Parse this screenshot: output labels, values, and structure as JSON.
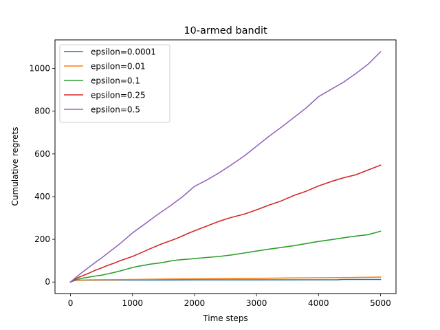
{
  "chart_data": {
    "type": "line",
    "title": "10-armed bandit",
    "xlabel": "Time steps",
    "ylabel": "Cumulative regrets",
    "xlim": [
      -250,
      5250
    ],
    "ylim": [
      -54,
      1134
    ],
    "xticks": [
      0,
      1000,
      2000,
      3000,
      4000,
      5000
    ],
    "yticks": [
      0,
      200,
      400,
      600,
      800,
      1000
    ],
    "grid": false,
    "legend_position": "top-left",
    "series": [
      {
        "name": "epsilon=0.0001",
        "color": "#1f77b4",
        "points": [
          [
            0,
            0
          ],
          [
            50,
            6
          ],
          [
            100,
            8
          ],
          [
            200,
            8.5
          ],
          [
            500,
            9
          ],
          [
            1000,
            9.5
          ],
          [
            2000,
            10
          ],
          [
            3000,
            10
          ],
          [
            4000,
            10.5
          ],
          [
            4300,
            10.5
          ],
          [
            4400,
            12
          ],
          [
            5000,
            12
          ]
        ]
      },
      {
        "name": "epsilon=0.01",
        "color": "#ff7f0e",
        "points": [
          [
            0,
            0
          ],
          [
            50,
            7
          ],
          [
            100,
            9
          ],
          [
            300,
            10
          ],
          [
            700,
            11
          ],
          [
            1000,
            12
          ],
          [
            1500,
            14
          ],
          [
            2000,
            15
          ],
          [
            2500,
            16
          ],
          [
            3000,
            17
          ],
          [
            3500,
            19
          ],
          [
            4000,
            20
          ],
          [
            4500,
            21
          ],
          [
            5000,
            23
          ]
        ]
      },
      {
        "name": "epsilon=0.1",
        "color": "#2ca02c",
        "points": [
          [
            0,
            0
          ],
          [
            100,
            12
          ],
          [
            200,
            18
          ],
          [
            300,
            23
          ],
          [
            400,
            28
          ],
          [
            500,
            32
          ],
          [
            600,
            38
          ],
          [
            700,
            45
          ],
          [
            800,
            52
          ],
          [
            900,
            60
          ],
          [
            1000,
            68
          ],
          [
            1100,
            74
          ],
          [
            1200,
            79
          ],
          [
            1300,
            84
          ],
          [
            1400,
            88
          ],
          [
            1500,
            92
          ],
          [
            1600,
            98
          ],
          [
            1700,
            102
          ],
          [
            1800,
            105
          ],
          [
            1900,
            107
          ],
          [
            2000,
            110
          ],
          [
            2200,
            115
          ],
          [
            2400,
            120
          ],
          [
            2600,
            127
          ],
          [
            2800,
            136
          ],
          [
            3000,
            145
          ],
          [
            3200,
            154
          ],
          [
            3400,
            162
          ],
          [
            3600,
            170
          ],
          [
            3800,
            180
          ],
          [
            4000,
            190
          ],
          [
            4200,
            198
          ],
          [
            4400,
            207
          ],
          [
            4600,
            215
          ],
          [
            4800,
            222
          ],
          [
            5000,
            238
          ]
        ]
      },
      {
        "name": "epsilon=0.25",
        "color": "#d62728",
        "points": [
          [
            0,
            0
          ],
          [
            100,
            18
          ],
          [
            200,
            30
          ],
          [
            300,
            42
          ],
          [
            400,
            55
          ],
          [
            500,
            66
          ],
          [
            600,
            78
          ],
          [
            700,
            88
          ],
          [
            800,
            100
          ],
          [
            900,
            110
          ],
          [
            1000,
            120
          ],
          [
            1100,
            132
          ],
          [
            1200,
            145
          ],
          [
            1300,
            158
          ],
          [
            1400,
            170
          ],
          [
            1500,
            182
          ],
          [
            1600,
            192
          ],
          [
            1700,
            203
          ],
          [
            1800,
            215
          ],
          [
            1900,
            228
          ],
          [
            2000,
            240
          ],
          [
            2200,
            262
          ],
          [
            2400,
            285
          ],
          [
            2600,
            303
          ],
          [
            2800,
            318
          ],
          [
            3000,
            338
          ],
          [
            3200,
            360
          ],
          [
            3400,
            380
          ],
          [
            3600,
            405
          ],
          [
            3800,
            425
          ],
          [
            4000,
            450
          ],
          [
            4200,
            470
          ],
          [
            4400,
            488
          ],
          [
            4600,
            502
          ],
          [
            4800,
            525
          ],
          [
            5000,
            547
          ]
        ]
      },
      {
        "name": "epsilon=0.5",
        "color": "#9467bd",
        "points": [
          [
            0,
            0
          ],
          [
            100,
            25
          ],
          [
            200,
            48
          ],
          [
            300,
            70
          ],
          [
            400,
            92
          ],
          [
            500,
            112
          ],
          [
            600,
            135
          ],
          [
            700,
            158
          ],
          [
            800,
            180
          ],
          [
            900,
            205
          ],
          [
            1000,
            230
          ],
          [
            1200,
            272
          ],
          [
            1400,
            315
          ],
          [
            1600,
            355
          ],
          [
            1800,
            398
          ],
          [
            2000,
            448
          ],
          [
            2200,
            478
          ],
          [
            2400,
            512
          ],
          [
            2600,
            550
          ],
          [
            2800,
            590
          ],
          [
            3000,
            636
          ],
          [
            3200,
            682
          ],
          [
            3400,
            725
          ],
          [
            3600,
            770
          ],
          [
            3800,
            815
          ],
          [
            4000,
            868
          ],
          [
            4200,
            902
          ],
          [
            4400,
            935
          ],
          [
            4600,
            976
          ],
          [
            4800,
            1020
          ],
          [
            5000,
            1078
          ]
        ]
      }
    ]
  }
}
